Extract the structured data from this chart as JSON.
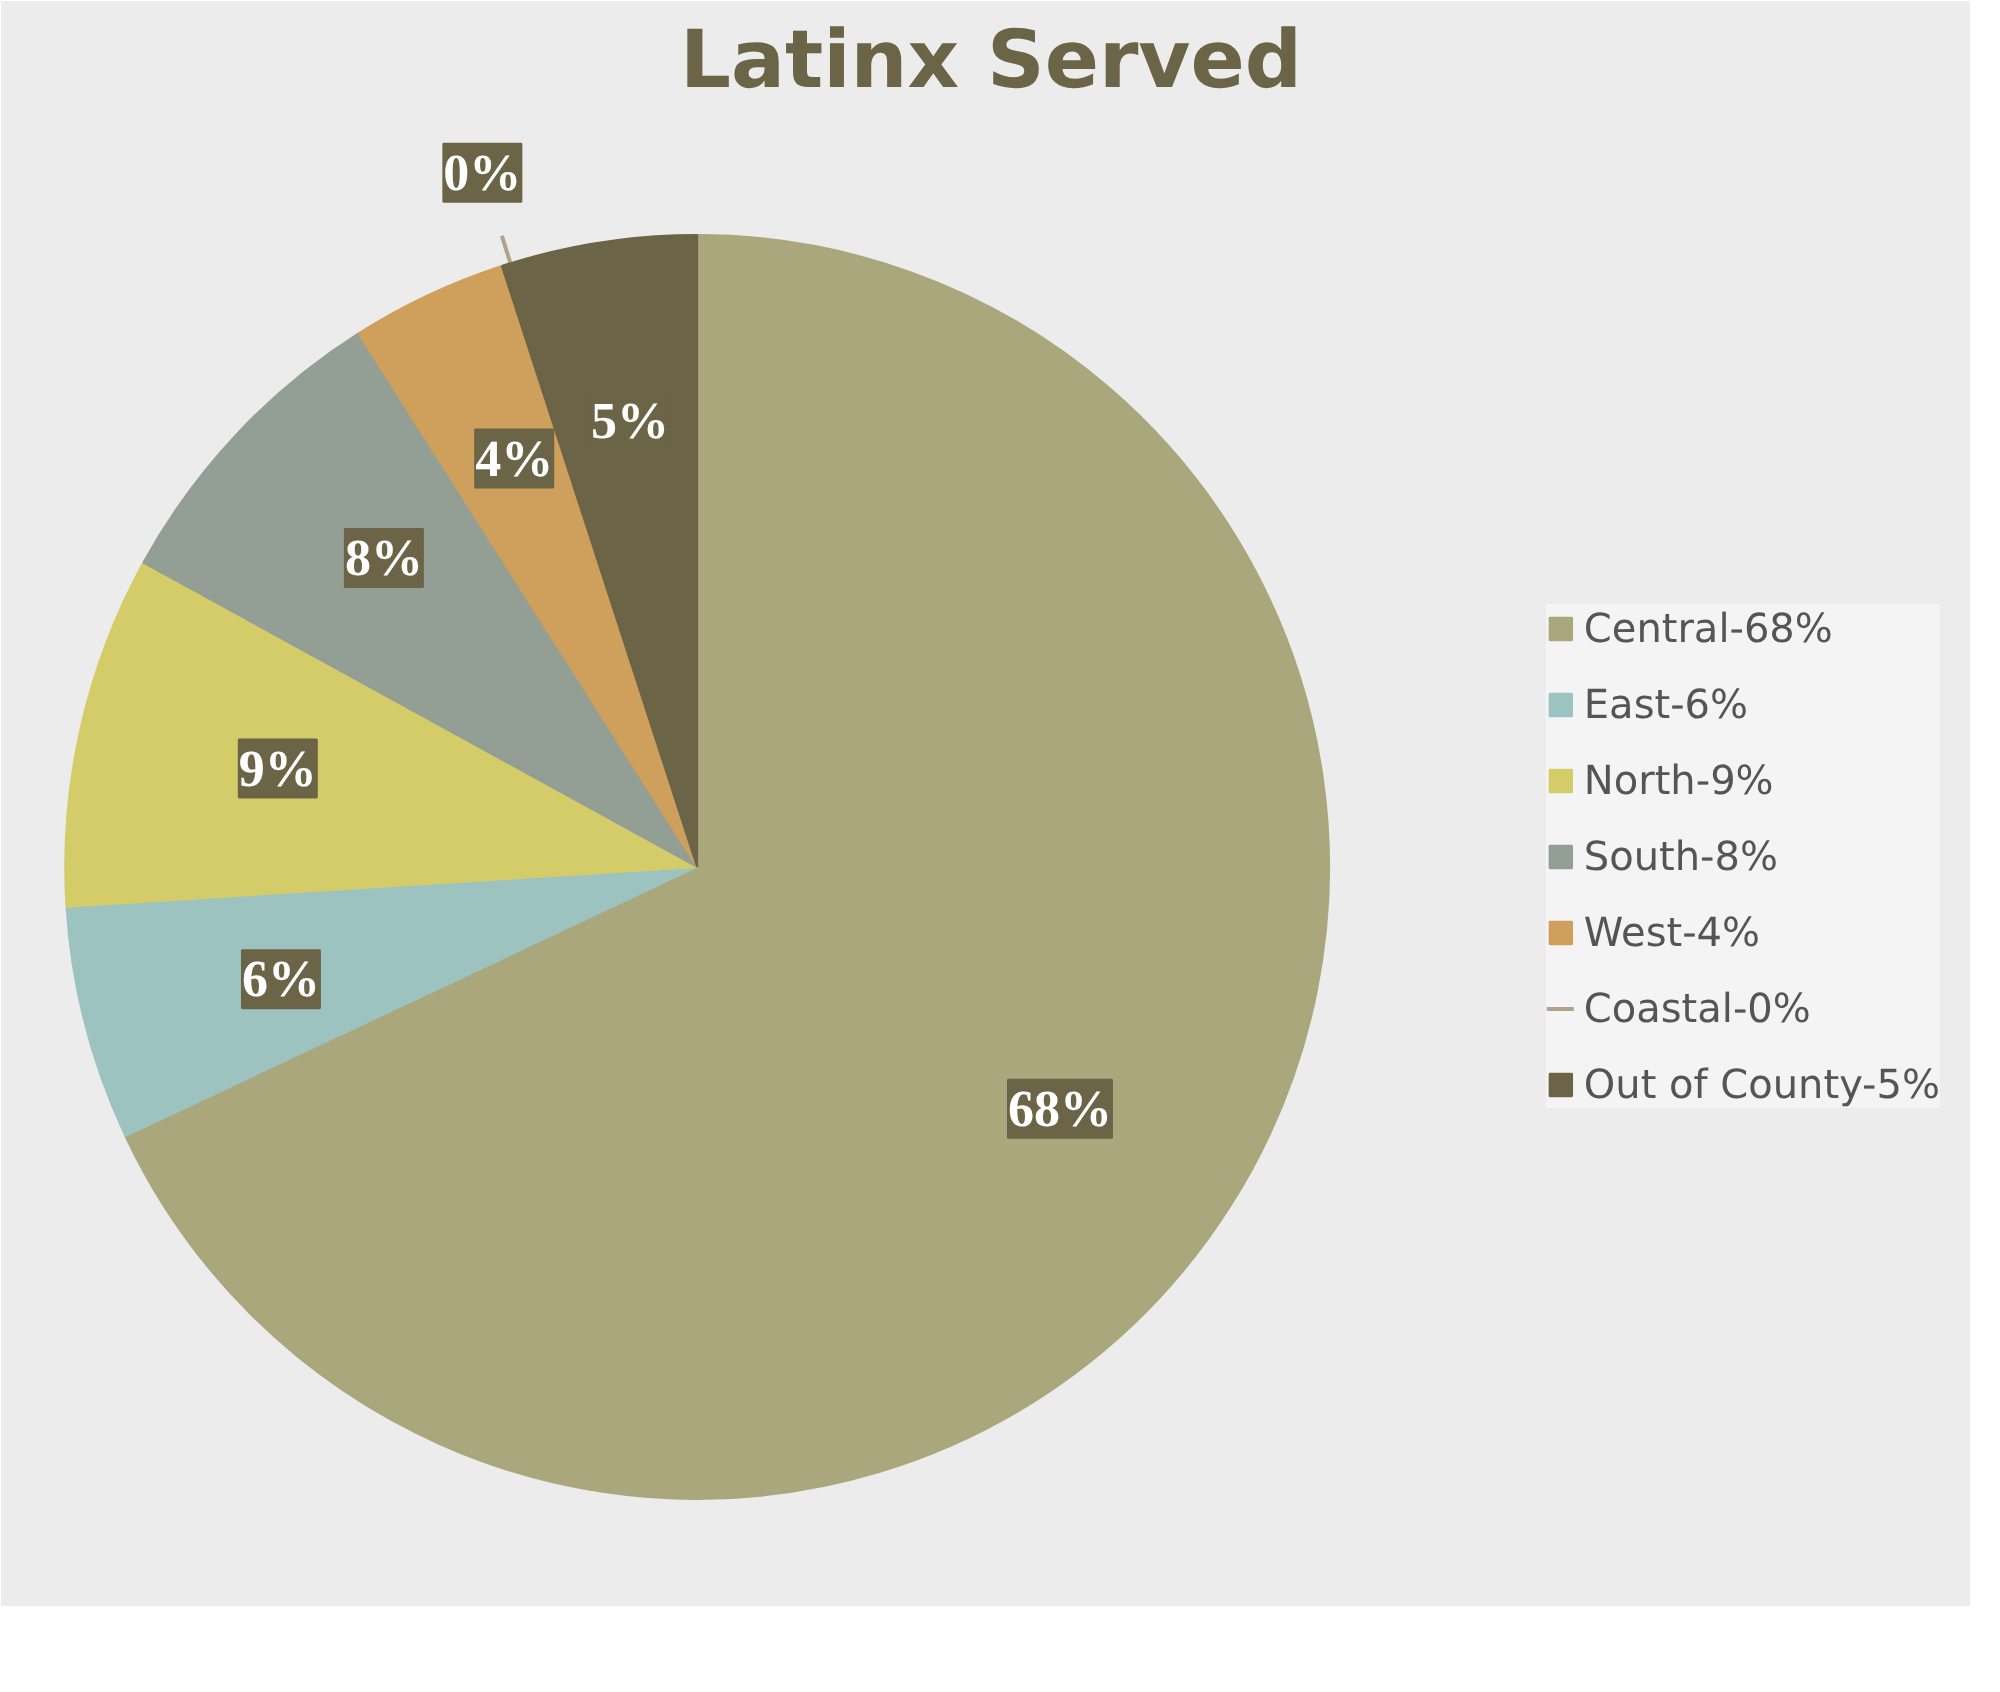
{
  "chart_data": {
    "type": "pie",
    "title": "Latinx Served",
    "categories": [
      "Central-68%",
      "East-6%",
      "North-9%",
      "South-8%",
      "West-4%",
      "Coastal-0%",
      "Out of County-5%"
    ],
    "values": [
      68,
      6,
      9,
      8,
      4,
      0,
      5
    ],
    "colors": [
      "#a9a77b",
      "#9dc3c1",
      "#d4cc68",
      "#939e94",
      "#cf9f5c",
      "#b0a38c",
      "#6b6446"
    ],
    "value_labels": [
      "68%",
      "6%",
      "9%",
      "8%",
      "4%",
      "0%",
      "5%"
    ],
    "legend": "right"
  }
}
